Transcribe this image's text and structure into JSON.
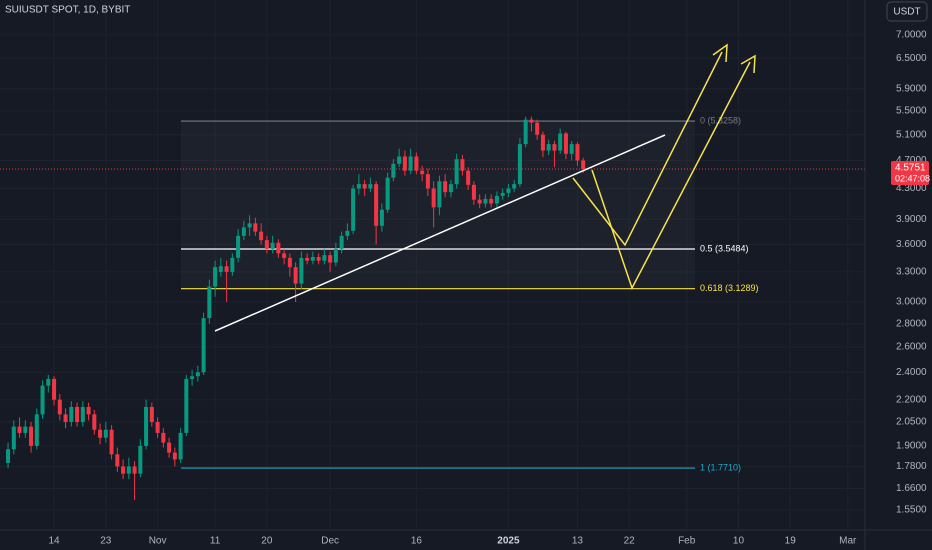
{
  "chart_data": {
    "type": "candlestick",
    "title": "SUIUSDT SPOT, 1D, BYBIT",
    "currency_button": "USDT",
    "log_scale": true,
    "grid": true,
    "up_color": "#089981",
    "down_color": "#f23645",
    "xlim": [
      -1.4,
      149
    ],
    "ylim": [
      1.455,
      7.82
    ],
    "xticks": [
      {
        "value": 8,
        "label": "14"
      },
      {
        "value": 17,
        "label": "23"
      },
      {
        "value": 26,
        "label": "Nov"
      },
      {
        "value": 36,
        "label": "11"
      },
      {
        "value": 45,
        "label": "20"
      },
      {
        "value": 56,
        "label": "Dec"
      },
      {
        "value": 71,
        "label": "16"
      },
      {
        "value": 87,
        "label": "2025",
        "emphasis": true
      },
      {
        "value": 99,
        "label": "13"
      },
      {
        "value": 108,
        "label": "22"
      },
      {
        "value": 118,
        "label": "Feb"
      },
      {
        "value": 127,
        "label": "10"
      },
      {
        "value": 136,
        "label": "19"
      },
      {
        "value": 146,
        "label": "Mar"
      }
    ],
    "yticks": [
      {
        "value": 7,
        "label": "7.0000"
      },
      {
        "value": 6.5,
        "label": "6.5000"
      },
      {
        "value": 5.9,
        "label": "5.9000"
      },
      {
        "value": 5.5,
        "label": "5.5000"
      },
      {
        "value": 5.1,
        "label": "5.1000"
      },
      {
        "value": 4.7,
        "label": "4.7000"
      },
      {
        "value": 4.3,
        "label": "4.3000"
      },
      {
        "value": 3.9,
        "label": "3.9000"
      },
      {
        "value": 3.6,
        "label": "3.6000"
      },
      {
        "value": 3.3,
        "label": "3.3000"
      },
      {
        "value": 3,
        "label": "3.0000"
      },
      {
        "value": 2.8,
        "label": "2.8000"
      },
      {
        "value": 2.6,
        "label": "2.6000"
      },
      {
        "value": 2.4,
        "label": "2.4000"
      },
      {
        "value": 2.2,
        "label": "2.2000"
      },
      {
        "value": 2.05,
        "label": "2.0500"
      },
      {
        "value": 1.9,
        "label": "1.9000"
      },
      {
        "value": 1.78,
        "label": "1.7800"
      },
      {
        "value": 1.66,
        "label": "1.6600"
      },
      {
        "value": 1.55,
        "label": "1.5500"
      }
    ],
    "open": [
      1.8,
      1.88,
      2.02,
      1.98,
      2.02,
      1.9,
      2.1,
      2.3,
      2.35,
      2.2,
      2.1,
      2.05,
      2.15,
      2.05,
      2.15,
      2.1,
      2.0,
      1.95,
      2.0,
      1.85,
      1.78,
      1.74,
      1.78,
      1.74,
      1.9,
      2.15,
      2.05,
      1.98,
      1.92,
      1.86,
      1.82,
      1.98,
      2.35,
      2.37,
      2.4,
      2.85,
      3.15,
      3.3,
      3.36,
      3.3,
      3.45,
      3.7,
      3.8,
      3.85,
      3.75,
      3.65,
      3.55,
      3.62,
      3.5,
      3.45,
      3.35,
      3.18,
      3.45,
      3.42,
      3.46,
      3.42,
      3.48,
      3.4,
      3.55,
      3.7,
      3.76,
      4.3,
      4.36,
      4.3,
      4.36,
      3.82,
      4.02,
      4.45,
      4.65,
      4.76,
      4.55,
      4.76,
      4.55,
      4.5,
      4.3,
      4.05,
      4.4,
      4.25,
      4.36,
      4.72,
      4.55,
      4.35,
      4.15,
      4.1,
      4.16,
      4.1,
      4.2,
      4.24,
      4.3,
      4.36,
      4.95,
      5.35,
      5.3,
      5.1,
      4.85,
      4.95,
      4.85,
      5.12,
      4.8,
      4.95,
      4.7
    ],
    "high": [
      1.92,
      2.06,
      2.08,
      2.06,
      2.05,
      2.14,
      2.34,
      2.38,
      2.37,
      2.24,
      2.14,
      2.19,
      2.18,
      2.19,
      2.18,
      2.13,
      2.04,
      2.05,
      2.03,
      1.89,
      1.82,
      1.83,
      1.81,
      1.94,
      2.2,
      2.18,
      2.08,
      2.01,
      1.95,
      1.89,
      2.01,
      2.38,
      2.42,
      2.45,
      2.9,
      3.22,
      3.42,
      3.45,
      3.42,
      3.5,
      3.78,
      3.88,
      3.95,
      3.92,
      3.85,
      3.7,
      3.7,
      3.66,
      3.55,
      3.5,
      3.4,
      3.52,
      3.5,
      3.52,
      3.5,
      3.55,
      3.52,
      3.62,
      3.75,
      3.85,
      4.35,
      4.5,
      4.42,
      4.45,
      4.4,
      4.1,
      4.52,
      4.72,
      4.88,
      4.85,
      4.88,
      4.82,
      4.62,
      4.58,
      4.4,
      4.48,
      4.5,
      4.42,
      4.8,
      4.78,
      4.6,
      4.4,
      4.22,
      4.22,
      4.22,
      4.26,
      4.3,
      4.36,
      4.42,
      5.05,
      5.4,
      5.4,
      5.35,
      5.15,
      5.02,
      5.0,
      5.2,
      5.15,
      5.0,
      4.98,
      4.74
    ],
    "low": [
      1.77,
      1.85,
      1.95,
      1.95,
      1.86,
      1.88,
      2.07,
      2.25,
      2.16,
      2.06,
      2.01,
      2.02,
      2.02,
      2.02,
      2.06,
      1.97,
      1.91,
      1.92,
      1.82,
      1.75,
      1.71,
      1.71,
      1.6,
      1.72,
      1.88,
      2.02,
      1.95,
      1.89,
      1.83,
      1.78,
      1.8,
      1.96,
      2.3,
      2.33,
      2.38,
      2.8,
      3.05,
      3.25,
      3.0,
      3.26,
      3.4,
      3.65,
      3.7,
      3.7,
      3.6,
      3.5,
      3.5,
      3.45,
      3.38,
      3.25,
      3.0,
      3.12,
      3.38,
      3.38,
      3.38,
      3.38,
      3.3,
      3.36,
      3.5,
      3.65,
      3.72,
      4.22,
      4.2,
      4.25,
      3.6,
      3.75,
      3.98,
      4.4,
      4.6,
      4.48,
      4.5,
      4.5,
      4.4,
      4.2,
      3.8,
      3.95,
      4.18,
      4.18,
      4.3,
      4.48,
      4.28,
      4.08,
      4.04,
      4.05,
      4.05,
      4.05,
      4.15,
      4.18,
      4.25,
      4.32,
      4.9,
      5.15,
      5.02,
      4.75,
      4.78,
      4.6,
      4.8,
      4.72,
      4.7,
      4.62,
      4.52
    ],
    "close": [
      1.88,
      2.02,
      1.98,
      2.02,
      1.9,
      2.1,
      2.3,
      2.35,
      2.2,
      2.1,
      2.05,
      2.15,
      2.05,
      2.15,
      2.1,
      2.0,
      1.95,
      2.0,
      1.85,
      1.78,
      1.74,
      1.78,
      1.74,
      1.9,
      2.15,
      2.05,
      1.98,
      1.92,
      1.86,
      1.82,
      1.98,
      2.35,
      2.37,
      2.4,
      2.85,
      3.15,
      3.35,
      3.36,
      3.3,
      3.45,
      3.7,
      3.8,
      3.85,
      3.75,
      3.65,
      3.55,
      3.62,
      3.5,
      3.45,
      3.35,
      3.18,
      3.45,
      3.42,
      3.46,
      3.42,
      3.48,
      3.4,
      3.55,
      3.7,
      3.76,
      4.3,
      4.36,
      4.3,
      4.36,
      3.82,
      4.02,
      4.45,
      4.65,
      4.76,
      4.55,
      4.76,
      4.55,
      4.5,
      4.3,
      4.05,
      4.4,
      4.25,
      4.36,
      4.72,
      4.55,
      4.35,
      4.15,
      4.1,
      4.16,
      4.1,
      4.2,
      4.24,
      4.3,
      4.36,
      4.95,
      5.35,
      5.3,
      5.1,
      4.85,
      4.95,
      4.85,
      5.12,
      4.8,
      4.95,
      4.7,
      4.5751
    ],
    "fib_levels": [
      {
        "value": 5.3258,
        "label": "0 (5.3258)",
        "color": "#787b86"
      },
      {
        "value": 3.5484,
        "label": "0.5 (3.5484)",
        "color": "#ffffff"
      },
      {
        "value": 3.1289,
        "label": "0.618 (3.1289)",
        "color": "#f7e34a"
      },
      {
        "value": 1.771,
        "label": "1 (1.7710)",
        "color": "#22a7c7"
      }
    ],
    "last_price": {
      "value": 4.5751,
      "countdown": "02:47:08",
      "color": "#f23645"
    }
  }
}
